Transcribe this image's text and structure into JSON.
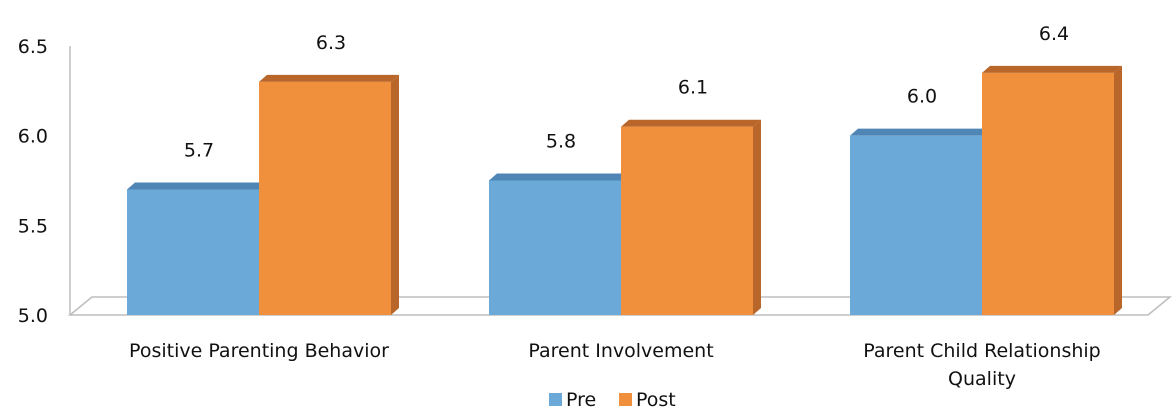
{
  "chart_data": {
    "type": "bar",
    "title": "",
    "xlabel": "",
    "ylabel": "",
    "ylim": [
      5.0,
      6.5
    ],
    "yticks": [
      "5.0",
      "5.5",
      "6.0",
      "6.5"
    ],
    "categories": [
      [
        "Positive Parenting Behavior"
      ],
      [
        "Parent Involvement"
      ],
      [
        "Parent Child Relationship",
        "Quality"
      ]
    ],
    "series": [
      {
        "name": "Pre",
        "values": [
          5.7,
          5.75,
          6.0
        ],
        "labels": [
          "5.7",
          "5.8",
          "6.0"
        ],
        "color": "#6aa9d8",
        "side": "#4f86b5"
      },
      {
        "name": "Post",
        "values": [
          6.3,
          6.05,
          6.35
        ],
        "labels": [
          "6.3",
          "6.1",
          "6.4"
        ],
        "color": "#f0903d",
        "side": "#b8662a"
      }
    ],
    "legend_position": "bottom",
    "grid": false
  }
}
